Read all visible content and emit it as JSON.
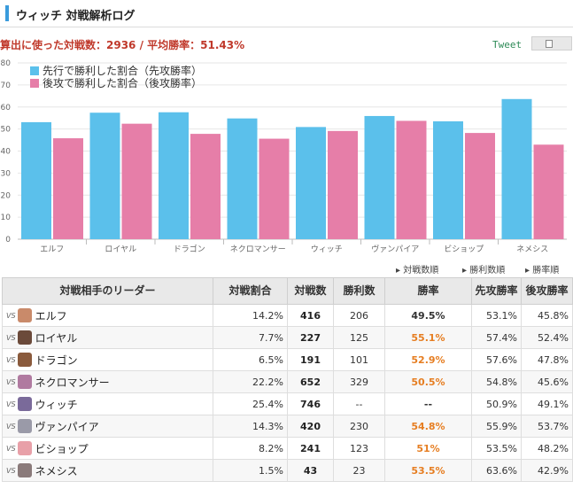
{
  "page": {
    "title": "ウィッチ 対戦解析ログ",
    "summary": "算出に使った対戦数：2936 / 平均勝率：51.43%",
    "tweet_label": "Tweet"
  },
  "chart_data": {
    "type": "bar",
    "categories": [
      "エルフ",
      "ロイヤル",
      "ドラゴン",
      "ネクロマンサー",
      "ウィッチ",
      "ヴァンパイア",
      "ビショップ",
      "ネメシス"
    ],
    "series": [
      {
        "name": "先行で勝利した割合（先攻勝率）",
        "color": "#5bc0eb",
        "values": [
          53.1,
          57.4,
          57.6,
          54.8,
          50.9,
          55.9,
          53.5,
          63.6
        ]
      },
      {
        "name": "後攻で勝利した割合（後攻勝率）",
        "color": "#e67ea8",
        "values": [
          45.8,
          52.4,
          47.8,
          45.6,
          49.1,
          53.7,
          48.2,
          42.9
        ]
      }
    ],
    "yticks": [
      0,
      10,
      20,
      30,
      40,
      50,
      60,
      70,
      80
    ],
    "ylim": [
      0,
      80
    ],
    "grid": true,
    "legend": "top-left"
  },
  "sort": {
    "by_count": "対戦数順",
    "by_wins": "勝利数順",
    "by_rate": "勝率順"
  },
  "table": {
    "headers": [
      "対戦相手のリーダー",
      "対戦割合",
      "対戦数",
      "勝利数",
      "勝率",
      "先攻勝率",
      "後攻勝率"
    ],
    "vs_label": "VS",
    "rows": [
      {
        "leader": "エルフ",
        "ratio": "14.2%",
        "matches": "416",
        "wins": "206",
        "rate": "49.5%",
        "first": "53.1%",
        "second": "45.8%",
        "rate_level": "lo",
        "avatar": "#c98a6a"
      },
      {
        "leader": "ロイヤル",
        "ratio": "7.7%",
        "matches": "227",
        "wins": "125",
        "rate": "55.1%",
        "first": "57.4%",
        "second": "52.4%",
        "rate_level": "hi",
        "avatar": "#6b4a3a"
      },
      {
        "leader": "ドラゴン",
        "ratio": "6.5%",
        "matches": "191",
        "wins": "101",
        "rate": "52.9%",
        "first": "57.6%",
        "second": "47.8%",
        "rate_level": "hi",
        "avatar": "#8a5a3c"
      },
      {
        "leader": "ネクロマンサー",
        "ratio": "22.2%",
        "matches": "652",
        "wins": "329",
        "rate": "50.5%",
        "first": "54.8%",
        "second": "45.6%",
        "rate_level": "hi",
        "avatar": "#b07aa0"
      },
      {
        "leader": "ウィッチ",
        "ratio": "25.4%",
        "matches": "746",
        "wins": "--",
        "rate": "--",
        "first": "50.9%",
        "second": "49.1%",
        "rate_level": "lo",
        "avatar": "#7a6a9a"
      },
      {
        "leader": "ヴァンパイア",
        "ratio": "14.3%",
        "matches": "420",
        "wins": "230",
        "rate": "54.8%",
        "first": "55.9%",
        "second": "53.7%",
        "rate_level": "hi",
        "avatar": "#9a9aa8"
      },
      {
        "leader": "ビショップ",
        "ratio": "8.2%",
        "matches": "241",
        "wins": "123",
        "rate": "51%",
        "first": "53.5%",
        "second": "48.2%",
        "rate_level": "hi",
        "avatar": "#e8a0a8"
      },
      {
        "leader": "ネメシス",
        "ratio": "1.5%",
        "matches": "43",
        "wins": "23",
        "rate": "53.5%",
        "first": "63.6%",
        "second": "42.9%",
        "rate_level": "hi",
        "avatar": "#8a7a7a"
      }
    ]
  }
}
